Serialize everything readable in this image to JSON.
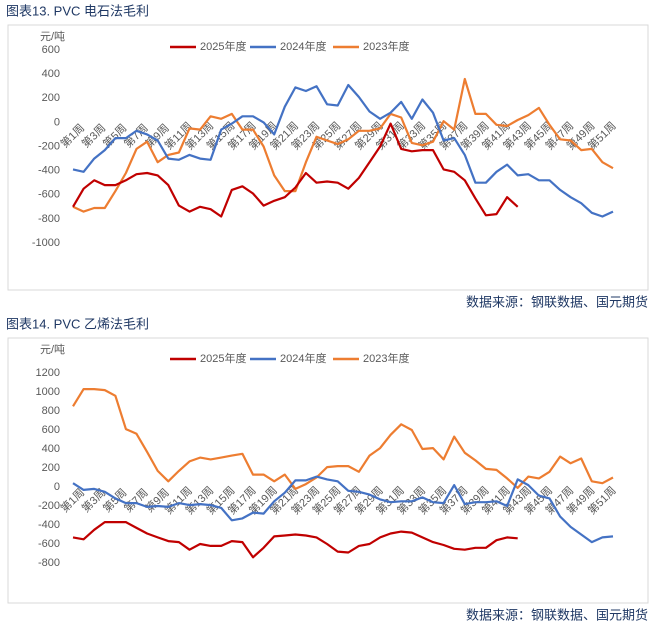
{
  "chart_data": [
    {
      "type": "line",
      "title": "图表13. PVC 电石法毛利",
      "y_label": "元/吨",
      "source": "数据来源：钢联数据、国元期货",
      "categories": [
        "第1周",
        null,
        "第3周",
        null,
        "第5周",
        null,
        "第7周",
        null,
        "第9周",
        null,
        "第11周",
        null,
        "第13周",
        null,
        "第15周",
        null,
        "第17周",
        null,
        "第19周",
        null,
        "第21周",
        null,
        "第23周",
        null,
        "第25周",
        null,
        "第27周",
        null,
        "第29周",
        null,
        "第31周",
        null,
        "第33周",
        null,
        "第35周",
        null,
        "第37周",
        null,
        "第39周",
        null,
        "第41周",
        null,
        "第43周",
        null,
        "第45周",
        null,
        "第47周",
        null,
        "第49周",
        null,
        "第51周",
        null
      ],
      "ylim": [
        -1000,
        600
      ],
      "yticks": [
        -1000,
        -800,
        -600,
        -400,
        -200,
        0,
        200,
        400,
        600
      ],
      "grid": false,
      "series": [
        {
          "name": "2025年度",
          "color": "#c00000",
          "values": [
            -700,
            -550,
            -480,
            -520,
            -520,
            -480,
            -430,
            -420,
            -440,
            -520,
            -690,
            -740,
            -700,
            -720,
            -780,
            -560,
            -530,
            -590,
            -690,
            -650,
            -620,
            -540,
            -420,
            -500,
            -490,
            -500,
            -550,
            -460,
            -330,
            -200,
            -10,
            -220,
            -240,
            -230,
            -230,
            -390,
            -410,
            -480,
            -630,
            -770,
            -760,
            -620,
            -700,
            null,
            null,
            null,
            null,
            null,
            null,
            null,
            null,
            null
          ]
        },
        {
          "name": "2024年度",
          "color": "#4472c4",
          "values": [
            -390,
            -410,
            -300,
            -230,
            -130,
            -130,
            -70,
            -100,
            -150,
            -300,
            -310,
            -270,
            -300,
            -310,
            -60,
            -10,
            50,
            50,
            0,
            -100,
            130,
            290,
            260,
            300,
            150,
            140,
            310,
            210,
            90,
            30,
            80,
            170,
            30,
            190,
            80,
            -150,
            -130,
            -270,
            -500,
            -500,
            -410,
            -350,
            -440,
            -430,
            -480,
            -480,
            -560,
            -620,
            -670,
            -750,
            -780,
            -740
          ]
        },
        {
          "name": "2023年度",
          "color": "#ed7d31",
          "values": [
            -700,
            -740,
            -710,
            -710,
            -570,
            -420,
            -220,
            -160,
            -330,
            -270,
            -250,
            -50,
            -60,
            50,
            30,
            70,
            -60,
            -60,
            -200,
            -440,
            -570,
            -570,
            -330,
            -120,
            -150,
            -180,
            -140,
            -70,
            -70,
            -50,
            70,
            40,
            -170,
            -190,
            -160,
            10,
            -60,
            360,
            70,
            70,
            -20,
            -30,
            20,
            60,
            120,
            -20,
            -140,
            -150,
            -230,
            -220,
            -330,
            -380
          ]
        }
      ]
    },
    {
      "type": "line",
      "title": "图表14. PVC 乙烯法毛利",
      "y_label": "元/吨",
      "source": "数据来源：钢联数据、国元期货",
      "categories": [
        "第1周",
        null,
        "第3周",
        null,
        "第5周",
        null,
        "第7周",
        null,
        "第9周",
        null,
        "第11周",
        null,
        "第13周",
        null,
        "第15周",
        null,
        "第17周",
        null,
        "第19周",
        null,
        "第21周",
        null,
        "第23周",
        null,
        "第25周",
        null,
        "第27周",
        null,
        "第29周",
        null,
        "第31周",
        null,
        "第33周",
        null,
        "第35周",
        null,
        "第37周",
        null,
        "第39周",
        null,
        "第41周",
        null,
        "第43周",
        null,
        "第45周",
        null,
        "第47周",
        null,
        "第49周",
        null,
        "第51周",
        null
      ],
      "ylim": [
        -800,
        1200
      ],
      "yticks": [
        -800,
        -600,
        -400,
        -200,
        0,
        200,
        400,
        600,
        800,
        1000,
        1200
      ],
      "grid": false,
      "series": [
        {
          "name": "2025年度",
          "color": "#c00000",
          "values": [
            -530,
            -550,
            -450,
            -370,
            -370,
            -370,
            -430,
            -490,
            -530,
            -570,
            -580,
            -660,
            -600,
            -620,
            -620,
            -570,
            -580,
            -740,
            -640,
            -520,
            -510,
            -500,
            -510,
            -530,
            -600,
            -680,
            -690,
            -620,
            -600,
            -530,
            -490,
            -470,
            -480,
            -530,
            -580,
            -610,
            -650,
            -660,
            -640,
            -640,
            -560,
            -530,
            -540,
            null,
            null,
            null,
            null,
            null,
            null,
            null,
            null,
            null
          ]
        },
        {
          "name": "2024年度",
          "color": "#4472c4",
          "values": [
            40,
            -30,
            -20,
            -50,
            -120,
            -170,
            -170,
            -210,
            -200,
            -210,
            -170,
            -190,
            -180,
            -190,
            -220,
            -350,
            -330,
            -270,
            -280,
            -150,
            -60,
            70,
            70,
            110,
            80,
            60,
            -40,
            -50,
            -80,
            -130,
            -160,
            -150,
            -150,
            -110,
            -160,
            -170,
            20,
            -180,
            -160,
            -160,
            -150,
            -200,
            80,
            20,
            -90,
            -120,
            -310,
            -420,
            -500,
            -580,
            -530,
            -520
          ]
        },
        {
          "name": "2023年度",
          "color": "#ed7d31",
          "values": [
            850,
            1030,
            1030,
            1020,
            960,
            610,
            560,
            370,
            170,
            60,
            170,
            270,
            310,
            290,
            310,
            330,
            350,
            130,
            130,
            60,
            130,
            -20,
            30,
            100,
            210,
            220,
            220,
            160,
            330,
            410,
            550,
            660,
            600,
            400,
            410,
            290,
            530,
            360,
            280,
            190,
            180,
            90,
            -10,
            110,
            90,
            160,
            320,
            250,
            300,
            60,
            40,
            100
          ]
        }
      ]
    }
  ]
}
